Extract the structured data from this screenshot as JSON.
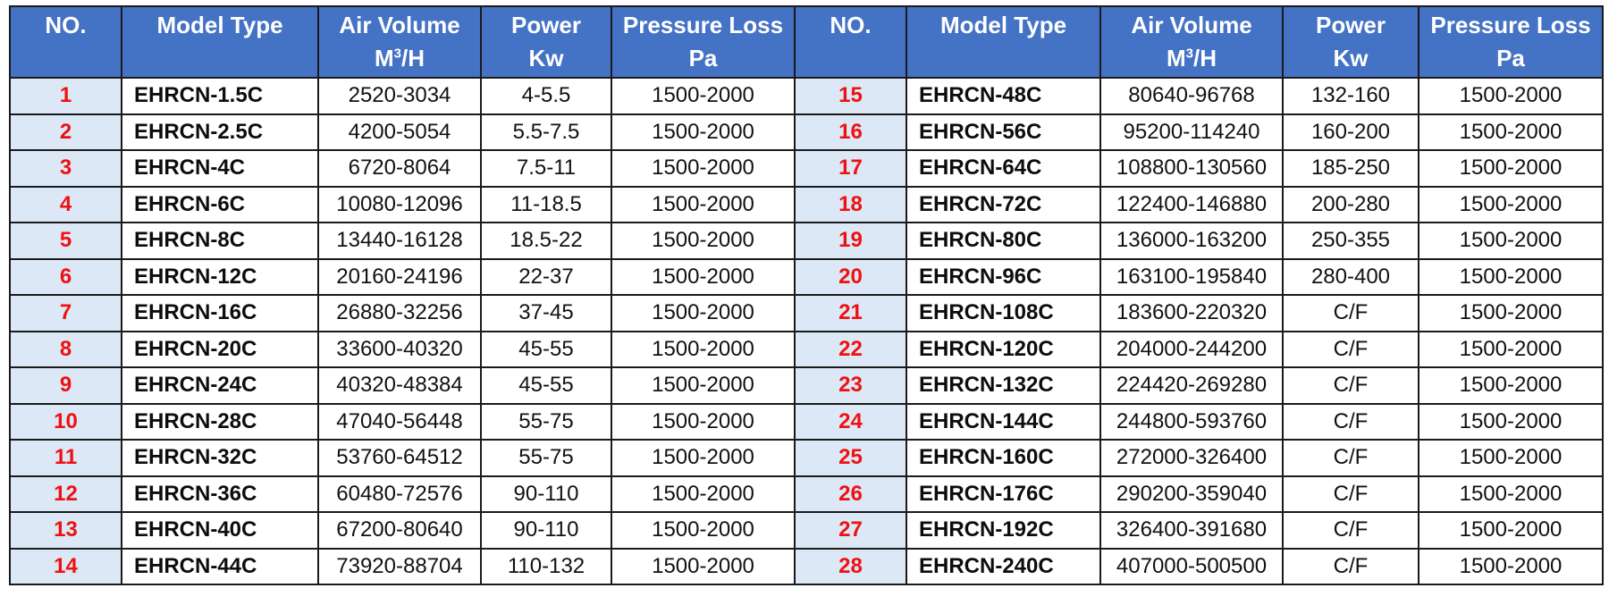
{
  "header": {
    "no": "NO.",
    "model": "Model Type",
    "air_volume": "Air Volume",
    "air_volume_unit_base": "M",
    "air_volume_unit_sup": "3",
    "air_volume_unit_rest": "/H",
    "power": "Power",
    "power_unit": "Kw",
    "pressure": "Pressure Loss",
    "pressure_unit": "Pa"
  },
  "rows": [
    {
      "left": {
        "no": "1",
        "model": "EHRCN-1.5C",
        "air": "2520-3034",
        "power": "4-5.5",
        "pressure": "1500-2000"
      },
      "right": {
        "no": "15",
        "model": "EHRCN-48C",
        "air": "80640-96768",
        "power": "132-160",
        "pressure": "1500-2000"
      }
    },
    {
      "left": {
        "no": "2",
        "model": "EHRCN-2.5C",
        "air": "4200-5054",
        "power": "5.5-7.5",
        "pressure": "1500-2000"
      },
      "right": {
        "no": "16",
        "model": "EHRCN-56C",
        "air": "95200-114240",
        "power": "160-200",
        "pressure": "1500-2000"
      }
    },
    {
      "left": {
        "no": "3",
        "model": "EHRCN-4C",
        "air": "6720-8064",
        "power": "7.5-11",
        "pressure": "1500-2000"
      },
      "right": {
        "no": "17",
        "model": "EHRCN-64C",
        "air": "108800-130560",
        "power": "185-250",
        "pressure": "1500-2000"
      }
    },
    {
      "left": {
        "no": "4",
        "model": "EHRCN-6C",
        "air": "10080-12096",
        "power": "11-18.5",
        "pressure": "1500-2000"
      },
      "right": {
        "no": "18",
        "model": "EHRCN-72C",
        "air": "122400-146880",
        "power": "200-280",
        "pressure": "1500-2000"
      }
    },
    {
      "left": {
        "no": "5",
        "model": "EHRCN-8C",
        "air": "13440-16128",
        "power": "18.5-22",
        "pressure": "1500-2000"
      },
      "right": {
        "no": "19",
        "model": "EHRCN-80C",
        "air": "136000-163200",
        "power": "250-355",
        "pressure": "1500-2000"
      }
    },
    {
      "left": {
        "no": "6",
        "model": "EHRCN-12C",
        "air": "20160-24196",
        "power": "22-37",
        "pressure": "1500-2000"
      },
      "right": {
        "no": "20",
        "model": "EHRCN-96C",
        "air": "163100-195840",
        "power": "280-400",
        "pressure": "1500-2000"
      }
    },
    {
      "left": {
        "no": "7",
        "model": "EHRCN-16C",
        "air": "26880-32256",
        "power": "37-45",
        "pressure": "1500-2000"
      },
      "right": {
        "no": "21",
        "model": "EHRCN-108C",
        "air": "183600-220320",
        "power": "C/F",
        "pressure": "1500-2000"
      }
    },
    {
      "left": {
        "no": "8",
        "model": "EHRCN-20C",
        "air": "33600-40320",
        "power": "45-55",
        "pressure": "1500-2000"
      },
      "right": {
        "no": "22",
        "model": "EHRCN-120C",
        "air": "204000-244200",
        "power": "C/F",
        "pressure": "1500-2000"
      }
    },
    {
      "left": {
        "no": "9",
        "model": "EHRCN-24C",
        "air": "40320-48384",
        "power": "45-55",
        "pressure": "1500-2000"
      },
      "right": {
        "no": "23",
        "model": "EHRCN-132C",
        "air": "224420-269280",
        "power": "C/F",
        "pressure": "1500-2000"
      }
    },
    {
      "left": {
        "no": "10",
        "model": "EHRCN-28C",
        "air": "47040-56448",
        "power": "55-75",
        "pressure": "1500-2000"
      },
      "right": {
        "no": "24",
        "model": "EHRCN-144C",
        "air": "244800-593760",
        "power": "C/F",
        "pressure": "1500-2000"
      }
    },
    {
      "left": {
        "no": "11",
        "model": "EHRCN-32C",
        "air": "53760-64512",
        "power": "55-75",
        "pressure": "1500-2000"
      },
      "right": {
        "no": "25",
        "model": "EHRCN-160C",
        "air": "272000-326400",
        "power": "C/F",
        "pressure": "1500-2000"
      }
    },
    {
      "left": {
        "no": "12",
        "model": "EHRCN-36C",
        "air": "60480-72576",
        "power": "90-110",
        "pressure": "1500-2000"
      },
      "right": {
        "no": "26",
        "model": "EHRCN-176C",
        "air": "290200-359040",
        "power": "C/F",
        "pressure": "1500-2000"
      }
    },
    {
      "left": {
        "no": "13",
        "model": "EHRCN-40C",
        "air": "67200-80640",
        "power": "90-110",
        "pressure": "1500-2000"
      },
      "right": {
        "no": "27",
        "model": "EHRCN-192C",
        "air": "326400-391680",
        "power": "C/F",
        "pressure": "1500-2000"
      }
    },
    {
      "left": {
        "no": "14",
        "model": "EHRCN-44C",
        "air": "73920-88704",
        "power": "110-132",
        "pressure": "1500-2000"
      },
      "right": {
        "no": "28",
        "model": "EHRCN-240C",
        "air": "407000-500500",
        "power": "C/F",
        "pressure": "1500-2000"
      }
    }
  ]
}
